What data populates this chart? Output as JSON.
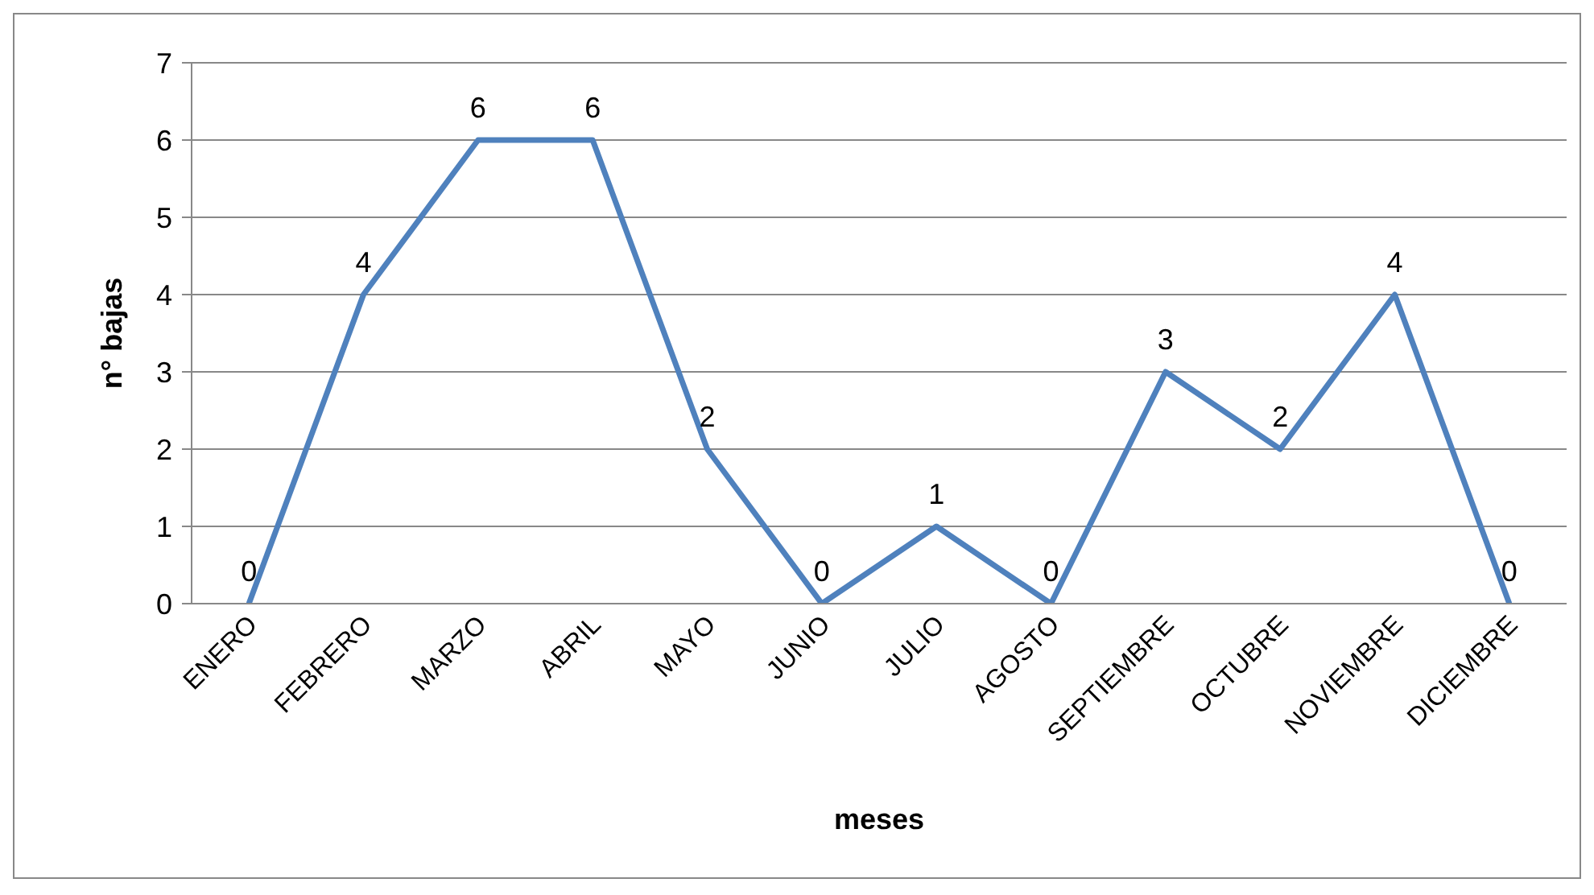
{
  "chart_data": {
    "type": "line",
    "xlabel": "meses",
    "ylabel": "n° bajas",
    "categories": [
      "ENERO",
      "FEBRERO",
      "MARZO",
      "ABRIL",
      "MAYO",
      "JUNIO",
      "JULIO",
      "AGOSTO",
      "SEPTIEMBRE",
      "OCTUBRE",
      "NOVIEMBRE",
      "DICIEMBRE"
    ],
    "series": [
      {
        "color": "#4f81bd",
        "values": [
          0,
          4,
          6,
          6,
          2,
          0,
          1,
          0,
          3,
          2,
          4,
          0
        ]
      }
    ],
    "ylim": [
      0,
      7
    ],
    "yticks": [
      0,
      1,
      2,
      3,
      4,
      5,
      6,
      7
    ],
    "grid": "y",
    "data_labels": true,
    "marker": "none",
    "line_style": "solid"
  }
}
